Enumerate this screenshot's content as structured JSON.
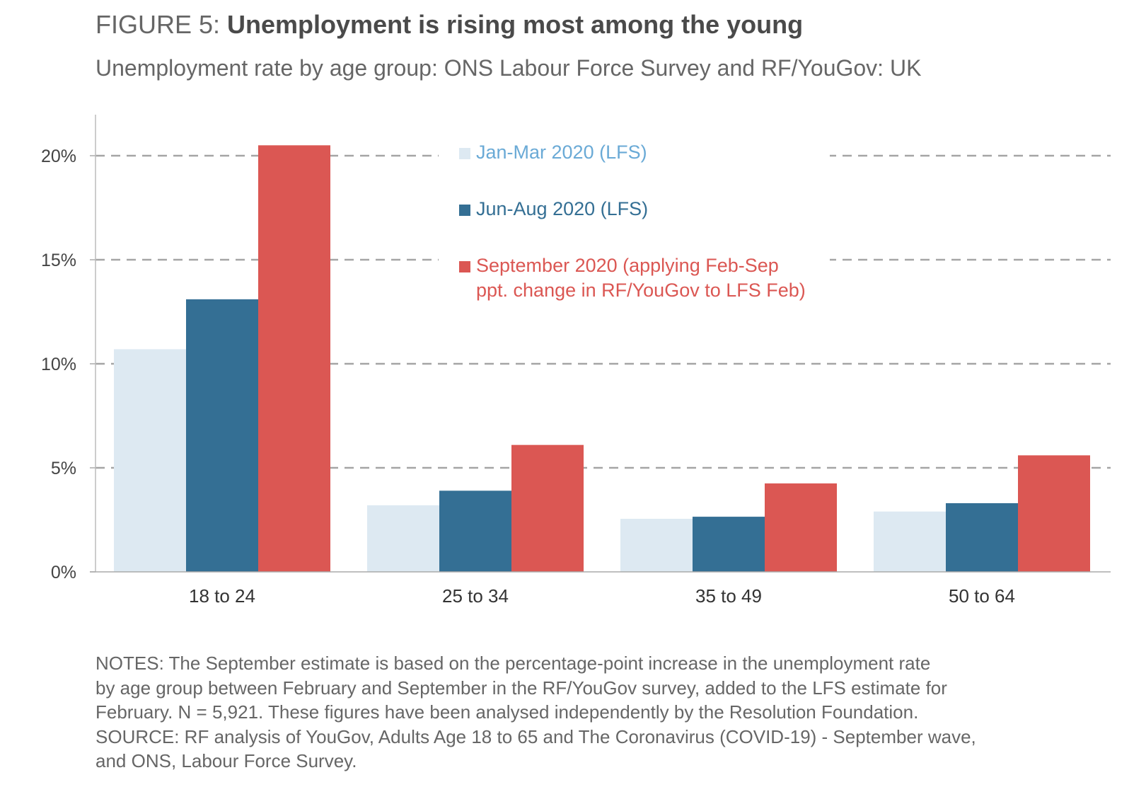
{
  "header": {
    "figure_label": "FIGURE 5: ",
    "title": "Unemployment is rising most among the young",
    "subtitle": "Unemployment rate by age group: ONS Labour Force Survey and RF/YouGov: UK"
  },
  "chart_data": {
    "type": "bar",
    "title": "Unemployment is rising most among the young",
    "categories": [
      "18 to 24",
      "25 to 34",
      "35 to 49",
      "50 to 64"
    ],
    "series": [
      {
        "name": "Jan-Mar 2020 (LFS)",
        "color": "#dde9f2",
        "values": [
          10.7,
          3.2,
          2.55,
          2.9
        ]
      },
      {
        "name": "Jun-Aug 2020 (LFS)",
        "color": "#346f94",
        "values": [
          13.1,
          3.9,
          2.65,
          3.3
        ]
      },
      {
        "name": "September 2020 (applying Feb-Sep ppt. change in RF/YouGov to LFS Feb)",
        "name_lines": [
          "September 2020 (applying Feb-Sep",
          "ppt. change in RF/YouGov to LFS Feb)"
        ],
        "color": "#db5753",
        "values": [
          20.5,
          6.1,
          4.25,
          5.6
        ]
      }
    ],
    "legend_text_colors": [
      "#6aaad6",
      "#346f94",
      "#db5753"
    ],
    "ylim": [
      0,
      20
    ],
    "yticks": [
      0,
      5,
      10,
      15,
      20
    ],
    "ytick_labels": [
      "0%",
      "5%",
      "10%",
      "15%",
      "20%"
    ],
    "grid": "dashed horizontal",
    "legend_position": "top-center"
  },
  "notes": {
    "lines": [
      "NOTES: The September estimate is based on the percentage-point increase in the unemployment rate",
      "by age group between February and September in the RF/YouGov survey, added to the LFS estimate for",
      "February. N = 5,921. These figures have been analysed independently by the Resolution Foundation.",
      "SOURCE: RF analysis of YouGov, Adults Age 18 to 65 and The Coronavirus (COVID-19) - September wave,",
      "and ONS, Labour Force Survey."
    ]
  }
}
